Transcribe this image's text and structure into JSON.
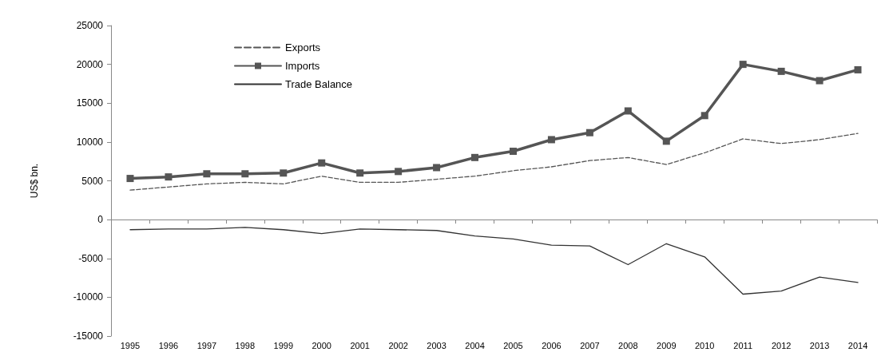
{
  "chart_data": {
    "type": "line",
    "ylabel": "US$ bn.",
    "categories": [
      "1995",
      "1996",
      "1997",
      "1998",
      "1999",
      "2000",
      "2001",
      "2002",
      "2003",
      "2004",
      "2005",
      "2006",
      "2007",
      "2008",
      "2009",
      "2010",
      "2011",
      "2012",
      "2013",
      "2014"
    ],
    "series": [
      {
        "name": "Exports",
        "color": "#555555",
        "line_style": "dashed",
        "marker": "none",
        "values": [
          3800,
          4200,
          4600,
          4800,
          4600,
          5600,
          4800,
          4800,
          5200,
          5600,
          6300,
          6800,
          7600,
          8000,
          7100,
          8600,
          10400,
          9800,
          10300,
          11100
        ]
      },
      {
        "name": "Imports",
        "color": "#555555",
        "line_style": "solid",
        "marker": "square",
        "values": [
          5300,
          5500,
          5900,
          5900,
          6000,
          7300,
          6000,
          6200,
          6700,
          8000,
          8800,
          10300,
          11200,
          14000,
          10100,
          13400,
          20000,
          19100,
          17900,
          19300
        ]
      },
      {
        "name": "Trade Balance",
        "color": "#333333",
        "line_style": "solid",
        "marker": "none",
        "values": [
          -1300,
          -1200,
          -1200,
          -1000,
          -1300,
          -1800,
          -1200,
          -1300,
          -1400,
          -2100,
          -2500,
          -3300,
          -3400,
          -5800,
          -3100,
          -4800,
          -9600,
          -9200,
          -7400,
          -8100
        ]
      }
    ],
    "ylim": [
      -15000,
      25000
    ],
    "yticks": [
      -15000,
      -10000,
      -5000,
      0,
      5000,
      10000,
      15000,
      20000,
      25000
    ],
    "legend": "top left"
  }
}
